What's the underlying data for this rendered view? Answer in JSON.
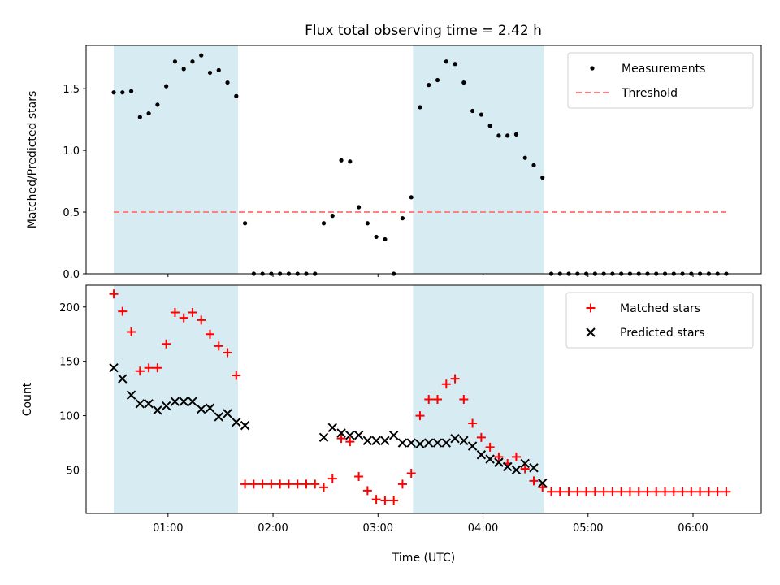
{
  "chart_data": {
    "type": "scatter",
    "title": "Flux total observing time = 2.42 h",
    "xlabel": "Time (UTC)",
    "x_ticks": [
      "01:00",
      "02:00",
      "03:00",
      "04:00",
      "05:00",
      "06:00"
    ],
    "x_tick_values_hours": [
      1,
      2,
      3,
      4,
      5,
      6
    ],
    "xlim_hours": [
      0.22,
      6.65
    ],
    "shaded_intervals": [
      {
        "start": "00:29",
        "end": "01:40"
      },
      {
        "start": "03:20",
        "end": "04:35"
      }
    ],
    "shade_color": "#add8e6",
    "panels": [
      {
        "name": "ratio",
        "ylabel": "Matched/Predicted stars",
        "ylim": [
          0,
          1.85
        ],
        "y_ticks": [
          0.0,
          0.5,
          1.0,
          1.5
        ],
        "y_tick_labels": [
          "0.0",
          "0.5",
          "1.0",
          "1.5"
        ],
        "legend_position": "upper right",
        "series": [
          {
            "name": "Measurements",
            "color": "#000000",
            "marker": "dot",
            "x": [
              "00:29",
              "00:34",
              "00:39",
              "00:44",
              "00:49",
              "00:54",
              "00:59",
              "01:04",
              "01:09",
              "01:14",
              "01:19",
              "01:24",
              "01:29",
              "01:34",
              "01:39",
              "01:44",
              "01:49",
              "01:54",
              "01:59",
              "02:04",
              "02:09",
              "02:14",
              "02:19",
              "02:24",
              "02:29",
              "02:34",
              "02:39",
              "02:44",
              "02:49",
              "02:54",
              "02:59",
              "03:04",
              "03:09",
              "03:14",
              "03:19",
              "03:24",
              "03:29",
              "03:34",
              "03:39",
              "03:44",
              "03:49",
              "03:54",
              "03:59",
              "04:04",
              "04:09",
              "04:14",
              "04:19",
              "04:24",
              "04:29",
              "04:34",
              "04:39",
              "04:44",
              "04:49",
              "04:54",
              "04:59",
              "05:04",
              "05:09",
              "05:14",
              "05:19",
              "05:24",
              "05:29",
              "05:34",
              "05:39",
              "05:44",
              "05:49",
              "05:54",
              "05:59",
              "06:04",
              "06:09",
              "06:14",
              "06:19"
            ],
            "y": [
              1.47,
              1.47,
              1.48,
              1.27,
              1.3,
              1.37,
              1.52,
              1.72,
              1.66,
              1.72,
              1.77,
              1.63,
              1.65,
              1.55,
              1.44,
              0.41,
              0,
              0,
              0,
              0,
              0,
              0,
              0,
              0,
              0.41,
              0.47,
              0.92,
              0.91,
              0.54,
              0.41,
              0.3,
              0.28,
              0,
              0.45,
              0.62,
              1.35,
              1.53,
              1.57,
              1.72,
              1.7,
              1.55,
              1.32,
              1.29,
              1.2,
              1.12,
              1.12,
              1.13,
              0.94,
              0.88,
              0.78,
              0,
              0,
              0,
              0,
              0,
              0,
              0,
              0,
              0,
              0,
              0,
              0,
              0,
              0,
              0,
              0,
              0,
              0,
              0,
              0,
              0
            ]
          },
          {
            "name": "Threshold",
            "color": "#ff7f7f",
            "style": "dashed",
            "x": [
              "00:29",
              "06:19"
            ],
            "y": [
              0.5,
              0.5
            ]
          }
        ]
      },
      {
        "name": "counts",
        "ylabel": "Count",
        "ylim": [
          10,
          220
        ],
        "y_ticks": [
          50,
          100,
          150,
          200
        ],
        "y_tick_labels": [
          "50",
          "100",
          "150",
          "200"
        ],
        "legend_position": "upper right",
        "series": [
          {
            "name": "Matched stars",
            "color": "#ff0000",
            "marker": "plus",
            "x": [
              "00:29",
              "00:34",
              "00:39",
              "00:44",
              "00:49",
              "00:54",
              "00:59",
              "01:04",
              "01:09",
              "01:14",
              "01:19",
              "01:24",
              "01:29",
              "01:34",
              "01:39",
              "01:44",
              "01:49",
              "01:54",
              "01:59",
              "02:04",
              "02:09",
              "02:14",
              "02:19",
              "02:24",
              "02:29",
              "02:34",
              "02:39",
              "02:44",
              "02:49",
              "02:54",
              "02:59",
              "03:04",
              "03:09",
              "03:14",
              "03:19",
              "03:24",
              "03:29",
              "03:34",
              "03:39",
              "03:44",
              "03:49",
              "03:54",
              "03:59",
              "04:04",
              "04:09",
              "04:14",
              "04:19",
              "04:24",
              "04:29",
              "04:34",
              "04:39",
              "04:44",
              "04:49",
              "04:54",
              "04:59",
              "05:04",
              "05:09",
              "05:14",
              "05:19",
              "05:24",
              "05:29",
              "05:34",
              "05:39",
              "05:44",
              "05:49",
              "05:54",
              "05:59",
              "06:04",
              "06:09",
              "06:14",
              "06:19"
            ],
            "y": [
              212,
              196,
              177,
              141,
              144,
              144,
              166,
              195,
              190,
              195,
              188,
              175,
              164,
              158,
              137,
              37,
              37,
              37,
              37,
              37,
              37,
              37,
              37,
              37,
              34,
              42,
              79,
              76,
              44,
              31,
              23,
              22,
              22,
              37,
              47,
              100,
              115,
              115,
              129,
              134,
              115,
              93,
              80,
              71,
              62,
              56,
              62,
              51,
              40,
              34,
              30,
              30,
              30,
              30,
              30,
              30,
              30,
              30,
              30,
              30,
              30,
              30,
              30,
              30,
              30,
              30,
              30,
              30,
              30,
              30,
              30
            ]
          },
          {
            "name": "Predicted stars",
            "color": "#000000",
            "marker": "x",
            "x": [
              "00:29",
              "00:34",
              "00:39",
              "00:44",
              "00:49",
              "00:54",
              "00:59",
              "01:04",
              "01:09",
              "01:14",
              "01:19",
              "01:24",
              "01:29",
              "01:34",
              "01:39",
              "01:44",
              "02:29",
              "02:34",
              "02:39",
              "02:44",
              "02:49",
              "02:54",
              "02:59",
              "03:04",
              "03:09",
              "03:14",
              "03:19",
              "03:24",
              "03:29",
              "03:34",
              "03:39",
              "03:44",
              "03:49",
              "03:54",
              "03:59",
              "04:04",
              "04:09",
              "04:14",
              "04:19",
              "04:24",
              "04:29",
              "04:34"
            ],
            "y": [
              144,
              134,
              119,
              111,
              111,
              105,
              109,
              113,
              113,
              113,
              106,
              107,
              99,
              102,
              94,
              91,
              80,
              89,
              84,
              82,
              82,
              77,
              77,
              77,
              82,
              75,
              75,
              74,
              75,
              75,
              75,
              79,
              77,
              72,
              64,
              60,
              57,
              53,
              50,
              56,
              52,
              38
            ]
          }
        ]
      }
    ]
  }
}
